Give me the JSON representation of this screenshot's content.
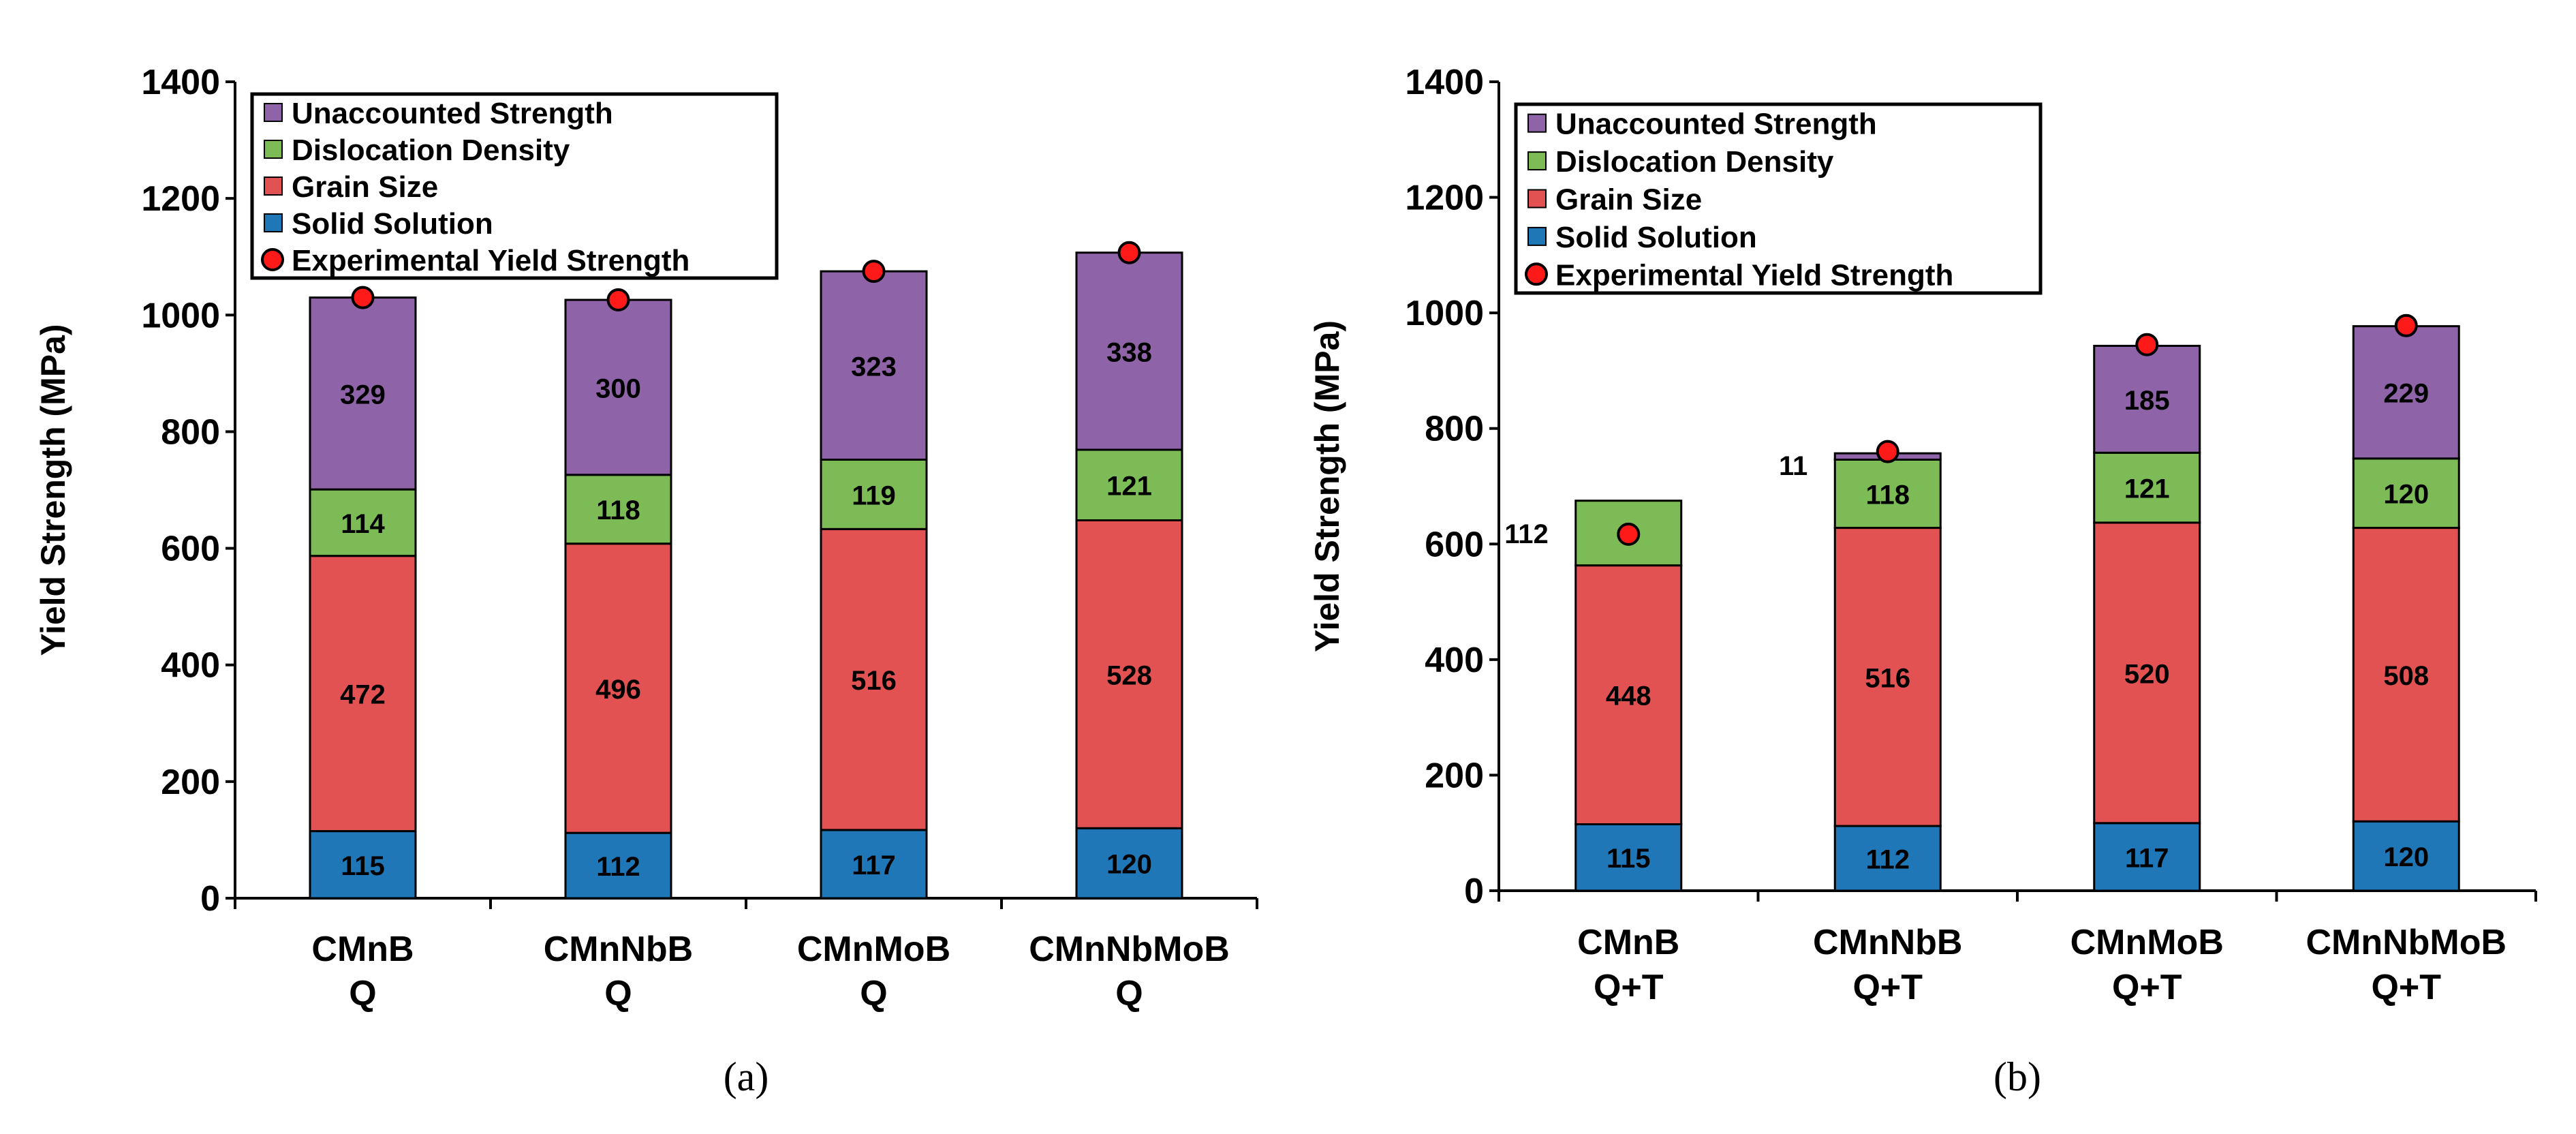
{
  "chart_data": [
    {
      "type": "bar",
      "stacked": true,
      "panel_label": "(a)",
      "ylabel": "Yield Strength (MPa)",
      "xlabel": "",
      "ylim": [
        0,
        1400
      ],
      "yticks": [
        0,
        200,
        400,
        600,
        800,
        1000,
        1200,
        1400
      ],
      "categories": [
        [
          "CMnB",
          "Q"
        ],
        [
          "CMnNbB",
          "Q"
        ],
        [
          "CMnMoB",
          "Q"
        ],
        [
          "CMnNbMoB",
          "Q"
        ]
      ],
      "series": [
        {
          "name": "Solid Solution",
          "color": "#1f77b8",
          "values": [
            115,
            112,
            117,
            120
          ]
        },
        {
          "name": "Grain Size",
          "color": "#e25252",
          "values": [
            472,
            496,
            516,
            528
          ]
        },
        {
          "name": "Dislocation Density",
          "color": "#7dbb57",
          "values": [
            114,
            118,
            119,
            121
          ]
        },
        {
          "name": "Unaccounted Strength",
          "color": "#8e63a8",
          "values": [
            329,
            300,
            323,
            338
          ]
        }
      ],
      "experimental": {
        "name": "Experimental Yield Strength",
        "color": "#ff1a1a",
        "values": [
          1030,
          1026,
          1075,
          1107
        ]
      },
      "legend": [
        "Unaccounted Strength",
        "Dislocation Density",
        "Grain Size",
        "Solid Solution",
        "Experimental Yield Strength"
      ],
      "legend_position": "top-left"
    },
    {
      "type": "bar",
      "stacked": true,
      "panel_label": "(b)",
      "ylabel": "Yield Strength (MPa)",
      "xlabel": "",
      "ylim": [
        0,
        1400
      ],
      "yticks": [
        0,
        200,
        400,
        600,
        800,
        1000,
        1200,
        1400
      ],
      "categories": [
        [
          "CMnB",
          "Q+T"
        ],
        [
          "CMnNbB",
          "Q+T"
        ],
        [
          "CMnMoB",
          "Q+T"
        ],
        [
          "CMnNbMoB",
          "Q+T"
        ]
      ],
      "series": [
        {
          "name": "Solid Solution",
          "color": "#1f77b8",
          "values": [
            115,
            112,
            117,
            120
          ]
        },
        {
          "name": "Grain Size",
          "color": "#e25252",
          "values": [
            448,
            516,
            520,
            508
          ]
        },
        {
          "name": "Dislocation Density",
          "color": "#7dbb57",
          "values": [
            112,
            118,
            121,
            120
          ]
        },
        {
          "name": "Unaccounted Strength",
          "color": "#8e63a8",
          "values": [
            0,
            11,
            185,
            229
          ]
        }
      ],
      "outside_labels": [
        {
          "category_index": 0,
          "series": "Dislocation Density",
          "text": "112"
        },
        {
          "category_index": 1,
          "series": "Unaccounted Strength",
          "text": "11"
        }
      ],
      "experimental": {
        "name": "Experimental Yield Strength",
        "color": "#ff1a1a",
        "values": [
          617,
          760,
          945,
          978
        ]
      },
      "legend": [
        "Unaccounted Strength",
        "Dislocation Density",
        "Grain Size",
        "Solid Solution",
        "Experimental Yield Strength"
      ],
      "legend_position": "top-left"
    }
  ]
}
